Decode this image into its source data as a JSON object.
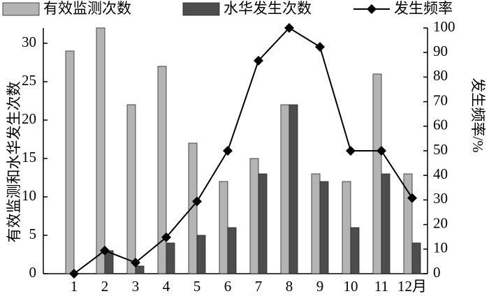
{
  "chart_data": {
    "type": "bar-line",
    "categories": [
      "1",
      "2",
      "3",
      "4",
      "5",
      "6",
      "7",
      "8",
      "9",
      "10",
      "11",
      "12月"
    ],
    "series": [
      {
        "name": "有效监测次数",
        "color": "#b4b4b4",
        "type": "bar",
        "values": [
          29,
          32,
          22,
          27,
          17,
          12,
          15,
          22,
          13,
          12,
          26,
          13
        ]
      },
      {
        "name": "水华发生次数",
        "color": "#4d4d4d",
        "type": "bar",
        "values": [
          0,
          3,
          1,
          4,
          5,
          6,
          13,
          22,
          12,
          6,
          13,
          4
        ]
      },
      {
        "name": "发生频率",
        "color": "#000000",
        "type": "line",
        "axis": "y2",
        "values": [
          0,
          9.4,
          4.5,
          14.8,
          29.4,
          50,
          86.7,
          100,
          92.3,
          50,
          50,
          30.8
        ]
      }
    ],
    "y_label": "有效监测和水华发生次数",
    "y2_label": "发生频率/%",
    "ylim": [
      0,
      32
    ],
    "yticks": [
      0,
      5,
      10,
      15,
      20,
      25,
      30
    ],
    "y2lim": [
      0,
      100
    ],
    "y2ticks": [
      0,
      10,
      20,
      30,
      40,
      50,
      60,
      70,
      80,
      90,
      100
    ],
    "legend": "top"
  }
}
